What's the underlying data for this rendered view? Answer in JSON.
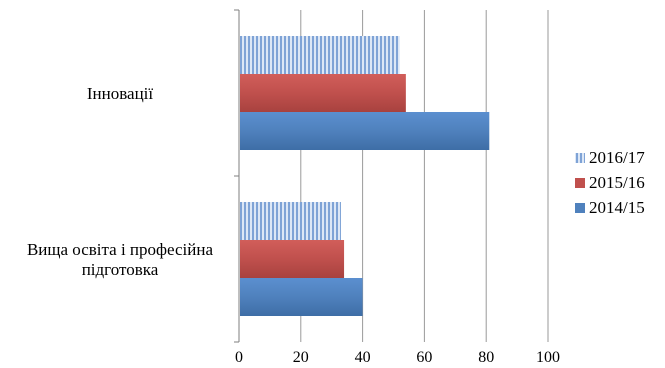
{
  "chart_data": {
    "type": "bar",
    "orientation": "horizontal",
    "categories": [
      "Інновації",
      "Вища освіта і професійна підготовка"
    ],
    "series": [
      {
        "name": "2016/17",
        "values": [
          52,
          33
        ],
        "color": "#a9c4ea",
        "pattern": "vertical-stripes"
      },
      {
        "name": "2015/16",
        "values": [
          54,
          34
        ],
        "color": "#c0504d",
        "pattern": "solid"
      },
      {
        "name": "2014/15",
        "values": [
          81,
          40
        ],
        "color": "#4f81bd",
        "pattern": "solid"
      }
    ],
    "xlim": [
      0,
      100
    ],
    "xticks": [
      0,
      20,
      40,
      60,
      80,
      100
    ],
    "grid": true,
    "legend": "right",
    "title": "",
    "xlabel": "",
    "ylabel": ""
  }
}
